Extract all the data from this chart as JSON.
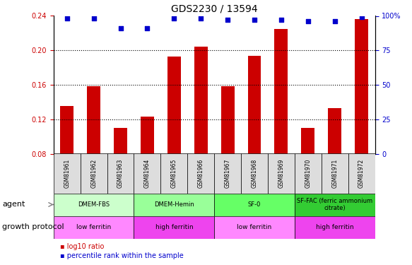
{
  "title": "GDS2230 / 13594",
  "categories": [
    "GSM81961",
    "GSM81962",
    "GSM81963",
    "GSM81964",
    "GSM81965",
    "GSM81966",
    "GSM81967",
    "GSM81968",
    "GSM81969",
    "GSM81970",
    "GSM81971",
    "GSM81972"
  ],
  "bar_values": [
    0.135,
    0.158,
    0.11,
    0.123,
    0.193,
    0.204,
    0.158,
    0.194,
    0.225,
    0.11,
    0.133,
    0.236
  ],
  "percentile_values": [
    98,
    98,
    91,
    91,
    98,
    98,
    97,
    97,
    97,
    96,
    96,
    99
  ],
  "bar_color": "#cc0000",
  "square_color": "#0000cc",
  "ylim_left": [
    0.08,
    0.24
  ],
  "ylim_right": [
    0,
    100
  ],
  "yticks_left": [
    0.08,
    0.12,
    0.16,
    0.2,
    0.24
  ],
  "yticks_right": [
    0,
    25,
    50,
    75,
    100
  ],
  "ylabel_left": "",
  "ylabel_right": "",
  "agent_groups": [
    {
      "label": "DMEM-FBS",
      "start": 0,
      "end": 3,
      "color": "#ccffcc"
    },
    {
      "label": "DMEM-Hemin",
      "start": 3,
      "end": 6,
      "color": "#99ff99"
    },
    {
      "label": "SF-0",
      "start": 6,
      "end": 9,
      "color": "#66ff66"
    },
    {
      "label": "SF-FAC (ferric ammonium\ncitrate)",
      "start": 9,
      "end": 12,
      "color": "#33cc33"
    }
  ],
  "protocol_groups": [
    {
      "label": "low ferritin",
      "start": 0,
      "end": 3,
      "color": "#ff88ff"
    },
    {
      "label": "high ferritin",
      "start": 3,
      "end": 6,
      "color": "#ee44ee"
    },
    {
      "label": "low ferritin",
      "start": 6,
      "end": 9,
      "color": "#ff88ff"
    },
    {
      "label": "high ferritin",
      "start": 9,
      "end": 12,
      "color": "#ee44ee"
    }
  ],
  "agent_label": "agent",
  "protocol_label": "growth protocol",
  "legend_bar_label": "log10 ratio",
  "legend_square_label": "percentile rank within the sample",
  "grid_color": "#000000",
  "bg_color": "#ffffff",
  "plot_area_color": "#ffffff",
  "spine_color": "#000000"
}
